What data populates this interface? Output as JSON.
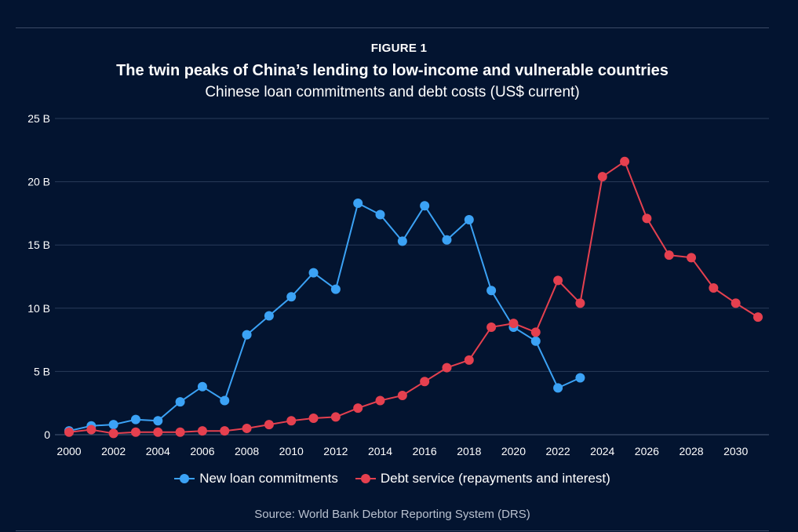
{
  "figure_label": "FIGURE 1",
  "title": "The twin peaks of China’s lending to low-income and vulnerable countries",
  "subtitle": "Chinese loan commitments and debt costs (US$ current)",
  "source": "Source: World Bank Debtor Reporting System (DRS)",
  "colors": {
    "background": "#031430",
    "grid": "#2a3b5a",
    "new_loans": "#3ba2f5",
    "debt_service": "#e5404f"
  },
  "chart_data": {
    "type": "line",
    "title": "The twin peaks of China’s lending to low-income and vulnerable countries",
    "subtitle": "Chinese loan commitments and debt costs (US$ current)",
    "xlabel": "",
    "ylabel": "",
    "xlim": [
      2000,
      2031
    ],
    "ylim": [
      0,
      25
    ],
    "x_ticks": [
      2000,
      2002,
      2004,
      2006,
      2008,
      2010,
      2012,
      2014,
      2016,
      2018,
      2020,
      2022,
      2024,
      2026,
      2028,
      2030
    ],
    "y_ticks": [
      0,
      5,
      10,
      15,
      20,
      25
    ],
    "y_tick_labels": [
      "0",
      "5 B",
      "10 B",
      "15 B",
      "20 B",
      "25 B"
    ],
    "grid": true,
    "legend_position": "bottom",
    "series": [
      {
        "name": "New loan commitments",
        "color": "#3ba2f5",
        "x": [
          2000,
          2001,
          2002,
          2003,
          2004,
          2005,
          2006,
          2007,
          2008,
          2009,
          2010,
          2011,
          2012,
          2013,
          2014,
          2015,
          2016,
          2017,
          2018,
          2019,
          2020,
          2021,
          2022,
          2023
        ],
        "values": [
          0.3,
          0.7,
          0.8,
          1.2,
          1.1,
          2.6,
          3.8,
          2.7,
          7.9,
          9.4,
          10.9,
          12.8,
          11.5,
          18.3,
          17.4,
          15.3,
          18.1,
          15.4,
          17.0,
          11.4,
          8.5,
          7.4,
          3.7,
          4.5
        ]
      },
      {
        "name": "Debt service (repayments and interest)",
        "color": "#e5404f",
        "x": [
          2000,
          2001,
          2002,
          2003,
          2004,
          2005,
          2006,
          2007,
          2008,
          2009,
          2010,
          2011,
          2012,
          2013,
          2014,
          2015,
          2016,
          2017,
          2018,
          2019,
          2020,
          2021,
          2022,
          2023,
          2024,
          2025,
          2026,
          2027,
          2028,
          2029,
          2030,
          2031
        ],
        "values": [
          0.2,
          0.4,
          0.1,
          0.2,
          0.2,
          0.2,
          0.3,
          0.3,
          0.5,
          0.8,
          1.1,
          1.3,
          1.4,
          2.1,
          2.7,
          3.1,
          4.2,
          5.3,
          5.9,
          8.5,
          8.8,
          8.1,
          12.2,
          10.4,
          20.4,
          21.6,
          17.1,
          14.2,
          14.0,
          11.6,
          10.4,
          9.3
        ]
      }
    ]
  }
}
